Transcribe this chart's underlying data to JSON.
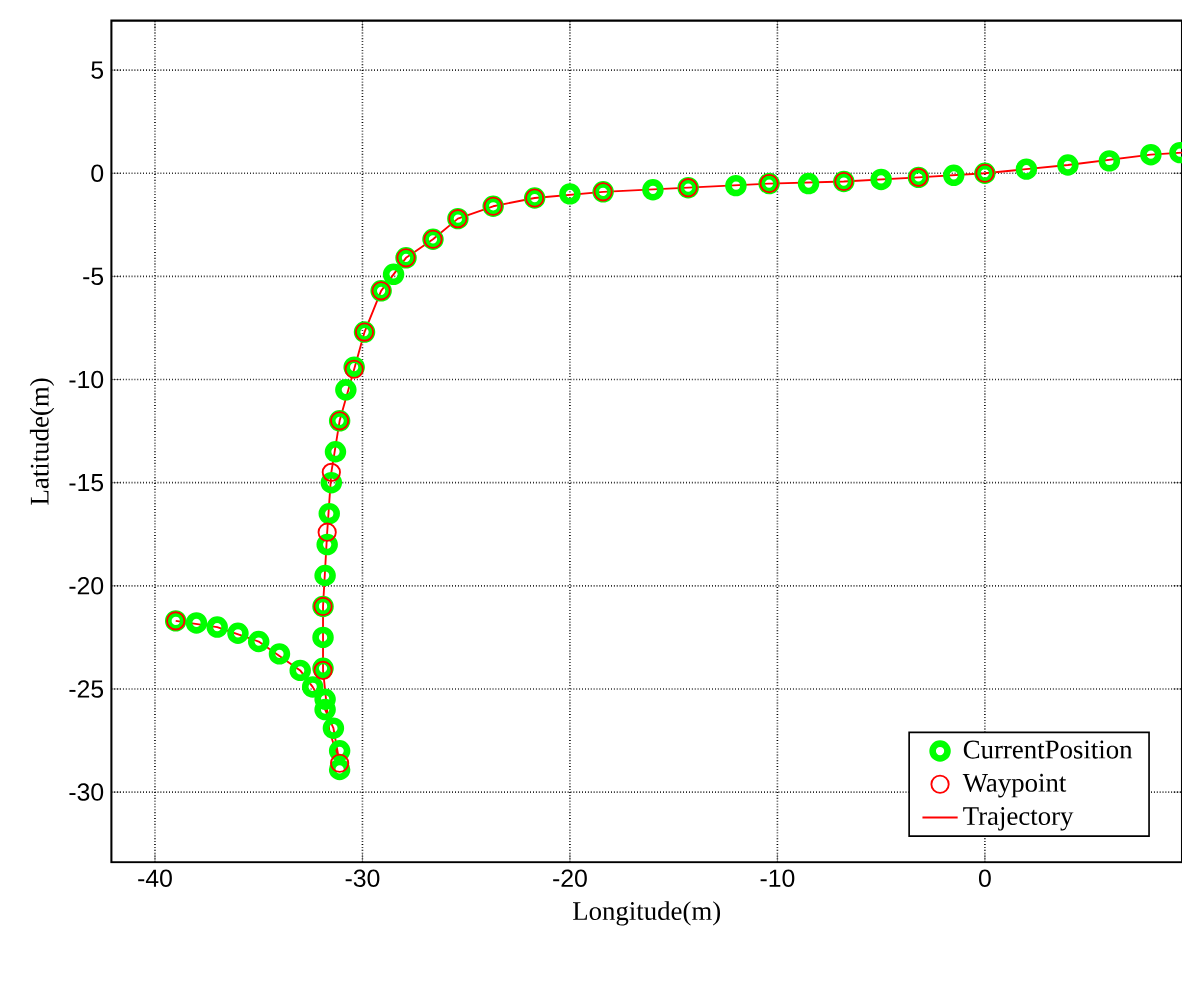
{
  "chart_data": {
    "type": "scatter",
    "xlabel": "Longitude(m)",
    "ylabel": "Latitude(m)",
    "xlim": [
      -42.1,
      9.5
    ],
    "ylim": [
      -33.4,
      7.4
    ],
    "xticks": [
      -40,
      -30,
      -20,
      -10,
      0
    ],
    "yticks": [
      -30,
      -25,
      -20,
      -15,
      -10,
      -5,
      0,
      5
    ],
    "grid": true,
    "legend": "bottom right",
    "series": [
      {
        "name": "CurrentPosition",
        "marker": "circle",
        "color": "#00ff00",
        "x": [
          -39.0,
          -38,
          -37,
          -36,
          -35,
          -34,
          -33,
          -32.4,
          -31.8,
          -31.4,
          -31.1,
          -31.1,
          -31.8,
          -31.9,
          -31.9,
          -31.9,
          -31.8,
          -31.7,
          -31.6,
          -31.5,
          -31.3,
          -31.1,
          -30.8,
          -30.4,
          -29.9,
          -29.1,
          -28.5,
          -27.9,
          -26.6,
          -25.4,
          -23.7,
          -21.7,
          -20,
          -18.4,
          -16,
          -14.3,
          -12,
          -10.4,
          -8.5,
          -6.8,
          -5,
          -3.2,
          -1.5,
          0,
          2,
          4,
          6,
          8,
          9.4
        ],
        "values": [
          -21.7,
          -21.8,
          -22.0,
          -22.3,
          -22.7,
          -23.3,
          -24.1,
          -24.9,
          -26.0,
          -26.9,
          -28.0,
          -28.9,
          -25.5,
          -24,
          -22.5,
          -21,
          -19.5,
          -18,
          -16.5,
          -15,
          -13.5,
          -12,
          -10.5,
          -9.4,
          -7.7,
          -5.7,
          -4.9,
          -4.1,
          -3.2,
          -2.2,
          -1.6,
          -1.2,
          -1.0,
          -0.9,
          -0.8,
          -0.7,
          -0.6,
          -0.5,
          -0.5,
          -0.4,
          -0.3,
          -0.2,
          -0.1,
          0,
          0.2,
          0.4,
          0.6,
          0.9,
          1.0
        ]
      },
      {
        "name": "Waypoint",
        "marker": "circle",
        "color": "#ff0000",
        "x": [
          -39.0,
          -31.1,
          -31.9,
          -31.9,
          -31.7,
          -31.5,
          -31.1,
          -30.4,
          -29.9,
          -29.1,
          -27.9,
          -26.6,
          -25.4,
          -23.7,
          -21.7,
          -18.4,
          -14.3,
          -10.4,
          -6.8,
          -3.2,
          0.0
        ],
        "values": [
          -21.7,
          -28.6,
          -24.1,
          -21.0,
          -17.4,
          -14.5,
          -12.0,
          -9.5,
          -7.7,
          -5.7,
          -4.1,
          -3.2,
          -2.2,
          -1.6,
          -1.2,
          -0.9,
          -0.7,
          -0.5,
          -0.4,
          -0.2,
          0.0
        ]
      },
      {
        "name": "Trajectory",
        "type": "line",
        "marker": "none",
        "color": "#ff0000",
        "x": [
          -39.0,
          -37,
          -35,
          -33,
          -32.4,
          -31.8,
          -31.4,
          -31.1,
          -31.6,
          -31.9,
          -31.9,
          -31.7,
          -31.5,
          -31.1,
          -30.4,
          -29.9,
          -29.1,
          -27.9,
          -26.6,
          -25.4,
          -23.7,
          -21.7,
          -18.4,
          -14.3,
          -10.4,
          -6.8,
          -3.2,
          0,
          4,
          8,
          9.5
        ],
        "values": [
          -21.7,
          -22.0,
          -22.7,
          -24.1,
          -24.9,
          -26.0,
          -26.9,
          -28.6,
          -27,
          -24.1,
          -21.0,
          -17.4,
          -14.5,
          -12.0,
          -9.5,
          -7.7,
          -5.7,
          -4.1,
          -3.2,
          -2.2,
          -1.6,
          -1.2,
          -0.9,
          -0.7,
          -0.5,
          -0.4,
          -0.2,
          0,
          0.4,
          0.9,
          1.0
        ]
      }
    ]
  }
}
